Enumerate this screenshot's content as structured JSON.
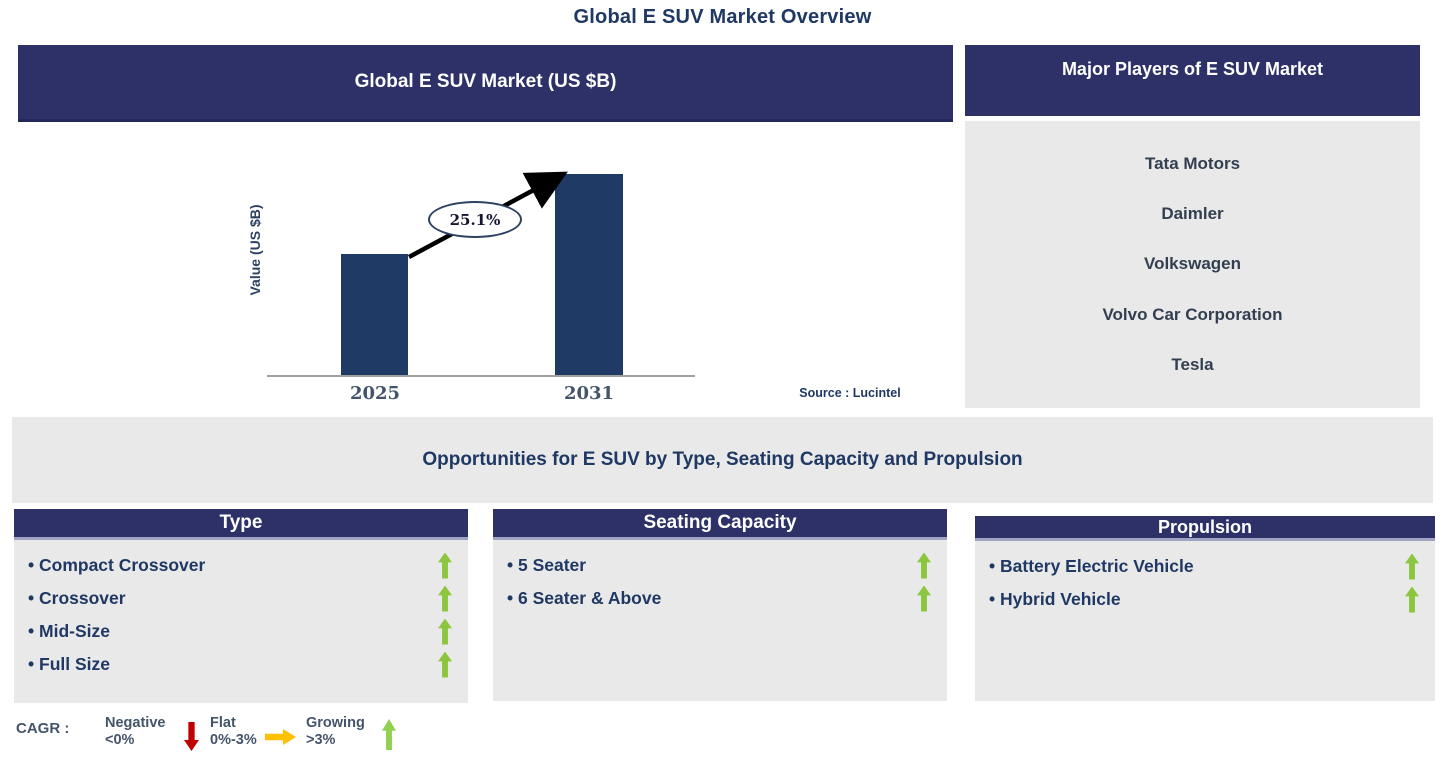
{
  "page_title": "Global E SUV Market Overview",
  "market_chart": {
    "header": "Global E SUV Market (US $B)",
    "ylabel": "Value (US $B)",
    "cagr_label": "25.1%",
    "source": "Source : Lucintel"
  },
  "chart_data": {
    "type": "bar",
    "title": "Global E SUV Market (US $B)",
    "categories": [
      "2025",
      "2031"
    ],
    "values": [
      0.6,
      1.0
    ],
    "values_note": "relative bar heights; no numeric y-axis shown",
    "ylabel": "Value (US $B)",
    "xlabel": "",
    "annotation": "25.1% growth arrow from 2025 bar to 2031 bar",
    "bar_color": "#1F3A64",
    "grid": false,
    "legend": "none"
  },
  "major_players": {
    "header": "Major Players of E SUV Market",
    "items": [
      "Tata Motors",
      "Daimler",
      "Volkswagen",
      "Volvo Car Corporation",
      "Tesla"
    ]
  },
  "opportunities": {
    "title": "Opportunities for E SUV by Type, Seating Capacity and Propulsion",
    "panels": [
      {
        "header": "Type",
        "items": [
          {
            "label": "Compact Crossover",
            "trend": "up"
          },
          {
            "label": "Crossover",
            "trend": "up"
          },
          {
            "label": "Mid-Size",
            "trend": "up"
          },
          {
            "label": "Full Size",
            "trend": "up"
          }
        ]
      },
      {
        "header": "Seating Capacity",
        "items": [
          {
            "label": "5 Seater",
            "trend": "up"
          },
          {
            "label": "6 Seater & Above",
            "trend": "up"
          }
        ]
      },
      {
        "header": "Propulsion",
        "items": [
          {
            "label": "Battery Electric Vehicle",
            "trend": "up"
          },
          {
            "label": "Hybrid Vehicle",
            "trend": "up"
          }
        ]
      }
    ]
  },
  "legend": {
    "label": "CAGR :",
    "entries": [
      {
        "name": "Negative",
        "range": "<0%",
        "direction": "down",
        "color": "#C00000"
      },
      {
        "name": "Flat",
        "range": "0%-3%",
        "direction": "right",
        "color": "#FFC000"
      },
      {
        "name": "Growing",
        "range": ">3%",
        "direction": "up",
        "color": "#92D050"
      }
    ]
  },
  "colors": {
    "header_navy": "#2D3168",
    "bar_navy": "#1F3A64",
    "panel_gray": "#E9E9E9",
    "title_text": "#1F3864",
    "player_text": "#333F50",
    "axis_text": "#44546A",
    "green_arrow": "#8CC63F",
    "legend_green": "#92D050",
    "legend_red": "#C00000",
    "legend_amber": "#FFC000"
  }
}
